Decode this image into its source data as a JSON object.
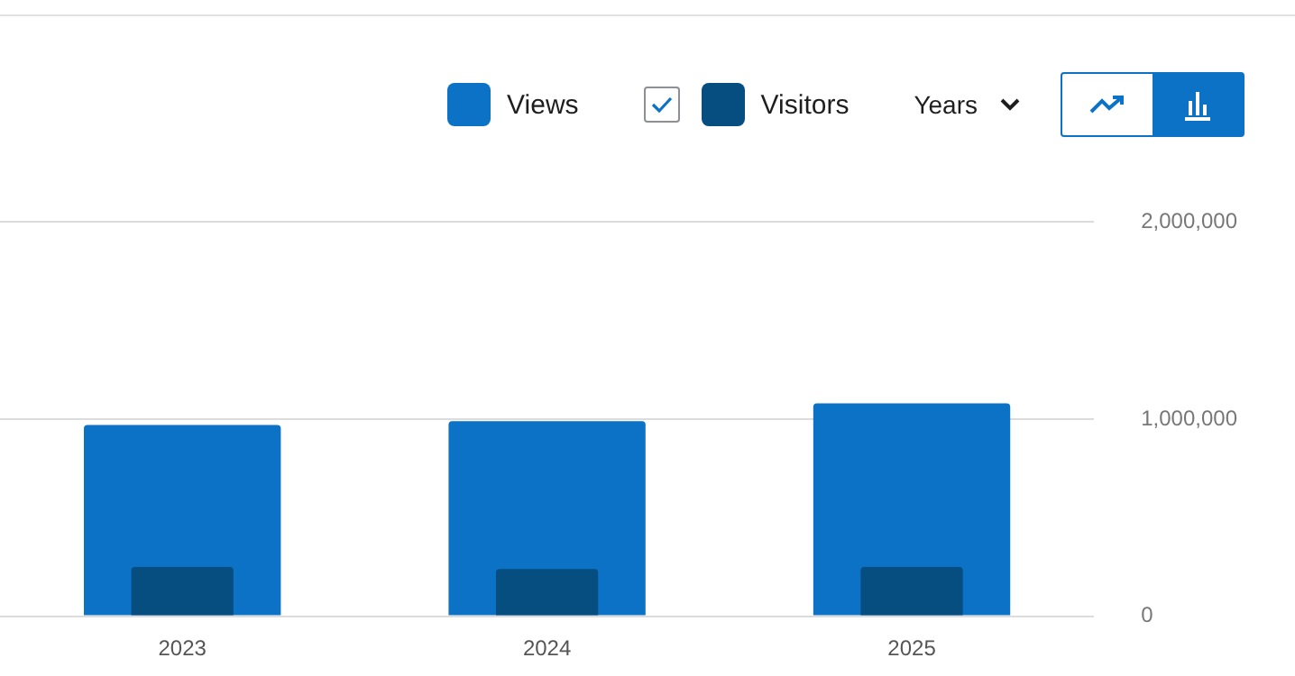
{
  "chart_data": {
    "type": "bar",
    "categories": [
      "2023",
      "2024",
      "2025"
    ],
    "series": [
      {
        "name": "Views",
        "color": "#0b72c6",
        "values": [
          970000,
          990000,
          1080000
        ]
      },
      {
        "name": "Visitors",
        "color": "#064d80",
        "values": [
          250000,
          240000,
          250000
        ]
      }
    ],
    "ylim": [
      0,
      2000000
    ],
    "yticks": [
      0,
      {
        "value": 1000000,
        "label": "1,000,000"
      },
      {
        "value": 2000000,
        "label": "2,000,000"
      }
    ],
    "grid": "y",
    "legend": "top right",
    "annotations": [
      "Years"
    ]
  }
}
